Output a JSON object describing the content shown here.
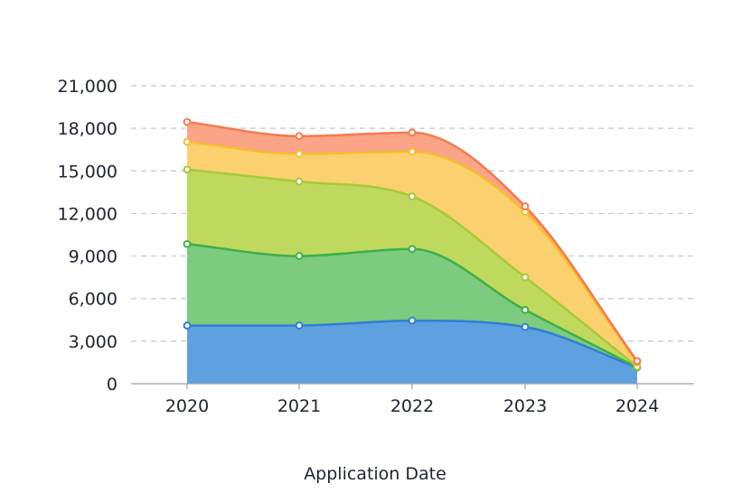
{
  "chart_data": {
    "type": "area",
    "stacked": true,
    "smooth": true,
    "title": "",
    "xlabel": "Application Date",
    "ylabel": "",
    "categories": [
      "2020",
      "2021",
      "2022",
      "2023",
      "2024"
    ],
    "ylim": [
      0,
      21000
    ],
    "yticks": [
      0,
      3000,
      6000,
      9000,
      12000,
      15000,
      18000,
      21000
    ],
    "ytick_labels": [
      "0",
      "3,000",
      "6,000",
      "9,000",
      "12,000",
      "15,000",
      "18,000",
      "21,000"
    ],
    "grid": "horizontal-dashed",
    "legend": "none",
    "series": [
      {
        "color": "#2f7fd6",
        "fill": "#5fa0e0",
        "values": [
          4100,
          4100,
          4450,
          4000,
          1150
        ]
      },
      {
        "color": "#3db04a",
        "fill": "#7dcb7e",
        "values": [
          5750,
          4900,
          5050,
          1200,
          0
        ]
      },
      {
        "color": "#a6c93a",
        "fill": "#bfd95e",
        "values": [
          5250,
          5250,
          3700,
          2300,
          50
        ]
      },
      {
        "color": "#f5be2e",
        "fill": "#fbd06e",
        "values": [
          1950,
          1950,
          3150,
          4600,
          300
        ]
      },
      {
        "color": "#f47a50",
        "fill": "#fba487",
        "values": [
          1400,
          1250,
          1350,
          400,
          100
        ]
      }
    ]
  }
}
